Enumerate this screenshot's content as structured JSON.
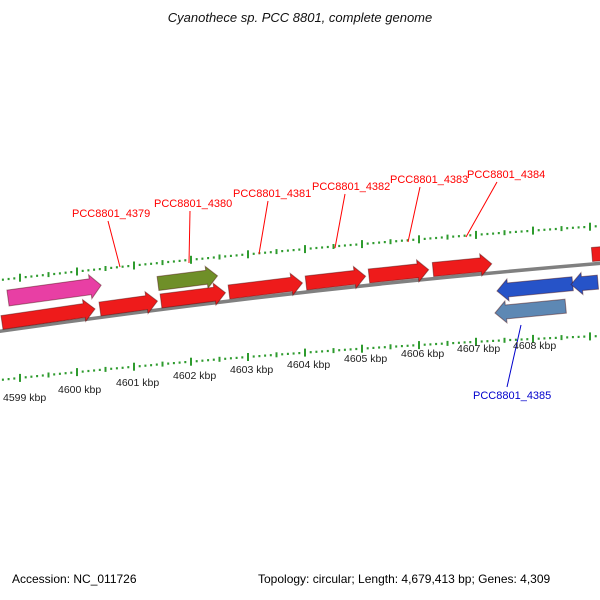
{
  "title": "Cyanothece sp. PCC 8801, complete genome",
  "gene_labels": [
    {
      "id": "PCC8801_4379",
      "strand": "forward"
    },
    {
      "id": "PCC8801_4380",
      "strand": "forward"
    },
    {
      "id": "PCC8801_4381",
      "strand": "forward"
    },
    {
      "id": "PCC8801_4382",
      "strand": "forward"
    },
    {
      "id": "PCC8801_4383",
      "strand": "forward"
    },
    {
      "id": "PCC8801_4384",
      "strand": "forward"
    },
    {
      "id": "PCC8801_4385",
      "strand": "reverse"
    }
  ],
  "ruler": {
    "labels": [
      "4599 kbp",
      "4600 kbp",
      "4601 kbp",
      "4602 kbp",
      "4603 kbp",
      "4604 kbp",
      "4605 kbp",
      "4606 kbp",
      "4607 kbp",
      "4608 kbp"
    ]
  },
  "colors": {
    "forward_gene": "#ee1b1b",
    "highlight_pink": "#e83fa4",
    "highlight_olive": "#6f8f28",
    "reverse_blue": "#2653c8",
    "reverse_steelblue": "#5d88b4",
    "axis": "#808080",
    "tick": "#2e9b2e",
    "label_red": "#ff0000",
    "label_blue": "#0000cc"
  },
  "footer": {
    "accession": "Accession: NC_011726",
    "details": "Topology: circular; Length: 4,679,413 bp; Genes: 4,309"
  }
}
